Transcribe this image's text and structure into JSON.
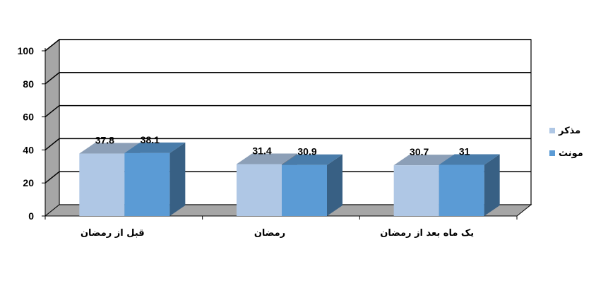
{
  "chart_data": {
    "type": "bar",
    "categories": [
      "قبل از رمضان",
      "رمضان",
      "یک ماه بعد از رمضان"
    ],
    "series": [
      {
        "name": "مذکر",
        "values": [
          37.8,
          31.4,
          30.7
        ],
        "color": "#AFC7E5"
      },
      {
        "name": "مونث",
        "values": [
          38.1,
          30.9,
          31
        ],
        "color": "#5B9BD5"
      }
    ],
    "data_labels": [
      [
        "37.8",
        "31.4",
        "30.7"
      ],
      [
        "38.1",
        "30.9",
        "31"
      ]
    ],
    "ylim": [
      0,
      100
    ],
    "yticks": [
      "0",
      "20",
      "40",
      "60",
      "80",
      "100"
    ],
    "title": "",
    "xlabel": "",
    "ylabel": "",
    "grid": true,
    "legend_position": "right",
    "style": "3d-column",
    "wall_color": "#A6A6A6",
    "floor_color": "#A6A6A6"
  }
}
